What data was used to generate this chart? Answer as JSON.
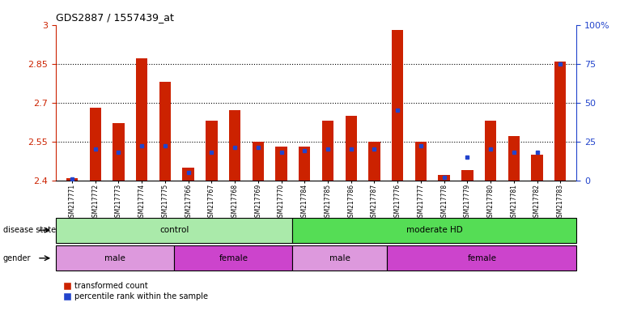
{
  "title": "GDS2887 / 1557439_at",
  "samples": [
    "GSM217771",
    "GSM217772",
    "GSM217773",
    "GSM217774",
    "GSM217775",
    "GSM217766",
    "GSM217767",
    "GSM217768",
    "GSM217769",
    "GSM217770",
    "GSM217784",
    "GSM217785",
    "GSM217786",
    "GSM217787",
    "GSM217776",
    "GSM217777",
    "GSM217778",
    "GSM217779",
    "GSM217780",
    "GSM217781",
    "GSM217782",
    "GSM217783"
  ],
  "transformed_count": [
    2.41,
    2.68,
    2.62,
    2.87,
    2.78,
    2.45,
    2.63,
    2.67,
    2.55,
    2.53,
    2.53,
    2.63,
    2.65,
    2.55,
    2.98,
    2.55,
    2.42,
    2.44,
    2.63,
    2.57,
    2.5,
    2.86
  ],
  "percentile_rank": [
    1,
    20,
    18,
    22,
    22,
    5,
    18,
    21,
    21,
    18,
    19,
    20,
    20,
    20,
    45,
    22,
    2,
    15,
    20,
    18,
    18,
    75
  ],
  "ymin": 2.4,
  "ymax": 3.0,
  "yticks": [
    2.4,
    2.55,
    2.7,
    2.85,
    3.0
  ],
  "ytick_labels": [
    "2.4",
    "2.55",
    "2.7",
    "2.85",
    "3"
  ],
  "right_yticks": [
    0,
    25,
    50,
    75,
    100
  ],
  "right_ytick_labels": [
    "0",
    "25",
    "50",
    "75",
    "100%"
  ],
  "bar_color": "#cc2200",
  "blue_color": "#2244cc",
  "disease_groups": [
    {
      "label": "control",
      "start": 0,
      "end": 10,
      "color": "#aaeaaa"
    },
    {
      "label": "moderate HD",
      "start": 10,
      "end": 22,
      "color": "#55dd55"
    }
  ],
  "gender_groups": [
    {
      "label": "male",
      "start": 0,
      "end": 5,
      "color": "#dd99dd"
    },
    {
      "label": "female",
      "start": 5,
      "end": 10,
      "color": "#cc44cc"
    },
    {
      "label": "male",
      "start": 10,
      "end": 14,
      "color": "#dd99dd"
    },
    {
      "label": "female",
      "start": 14,
      "end": 22,
      "color": "#cc44cc"
    }
  ],
  "left_axis_color": "#cc2200",
  "right_axis_color": "#2244cc",
  "bar_width": 0.5
}
